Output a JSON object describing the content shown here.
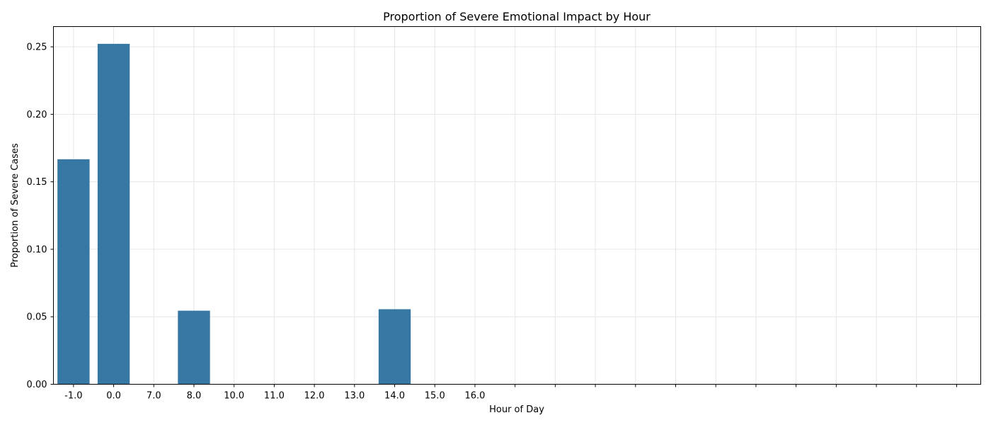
{
  "chart_data": {
    "type": "bar",
    "title": "Proportion of Severe Emotional Impact by Hour",
    "xlabel": "Hour of Day",
    "ylabel": "Proportion of Severe Cases",
    "categories": [
      "-1.0",
      "0.0",
      "7.0",
      "8.0",
      "10.0",
      "11.0",
      "12.0",
      "13.0",
      "14.0",
      "15.0",
      "16.0"
    ],
    "values": [
      0.1667,
      0.2522,
      0,
      0.0545,
      0,
      0,
      0,
      0,
      0.0556,
      0,
      0
    ],
    "empty_tick_slots": 12,
    "ylim": [
      0,
      0.265
    ],
    "yticks": [
      "0.00",
      "0.05",
      "0.10",
      "0.15",
      "0.20",
      "0.25"
    ],
    "ytick_values": [
      0,
      0.05,
      0.1,
      0.15,
      0.2,
      0.25
    ],
    "grid": true,
    "bar_color": "#3274a1",
    "grid_color": "#e6e6e6"
  }
}
